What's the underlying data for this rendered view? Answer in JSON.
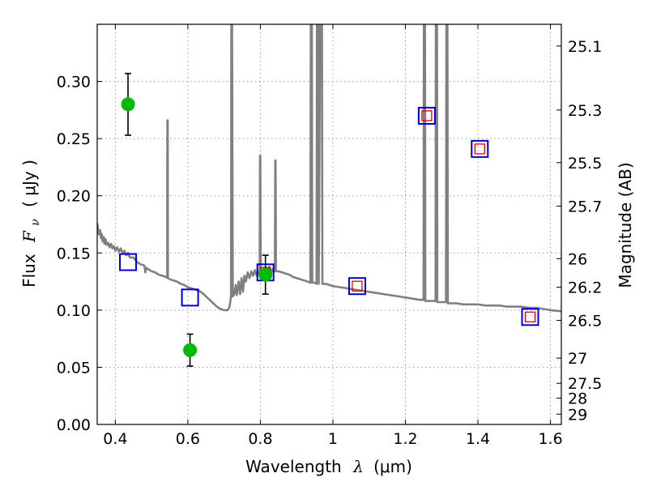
{
  "chart_data": {
    "type": "scatter",
    "xlabel_text": "Wavelength",
    "xlabel_symbol": "λ",
    "xlabel_unit": "(μm)",
    "ylabel_text": "Flux",
    "ylabel_symbol": "F",
    "ylabel_subscript": "ν",
    "ylabel_unit": "( μJy )",
    "y2label": "Magnitude (AB)",
    "xlim": [
      0.35,
      1.63
    ],
    "ylim": [
      0.0,
      0.35
    ],
    "grid": true,
    "xticks": [
      0.4,
      0.6,
      0.8,
      1.0,
      1.2,
      1.4,
      1.6
    ],
    "xtick_labels": [
      "0.4",
      "0.6",
      "0.8",
      "1",
      "1.2",
      "1.4",
      "1.6"
    ],
    "yticks": [
      0.0,
      0.05,
      0.1,
      0.15,
      0.2,
      0.25,
      0.3
    ],
    "ytick_labels": [
      "0.00",
      "0.05",
      "0.10",
      "0.15",
      "0.20",
      "0.25",
      "0.30"
    ],
    "y2ticks": [
      {
        "label": "25.1",
        "flux": 0.331
      },
      {
        "label": "25.3",
        "flux": 0.275
      },
      {
        "label": "25.5",
        "flux": 0.229
      },
      {
        "label": "25.7",
        "flux": 0.191
      },
      {
        "label": "26",
        "flux": 0.145
      },
      {
        "label": "26.2",
        "flux": 0.12
      },
      {
        "label": "26.5",
        "flux": 0.091
      },
      {
        "label": "27",
        "flux": 0.058
      },
      {
        "label": "27.5",
        "flux": 0.036
      },
      {
        "label": "28",
        "flux": 0.023
      },
      {
        "label": "29",
        "flux": 0.009
      }
    ],
    "observed_points": [
      {
        "x": 0.435,
        "y": 0.28,
        "err": 0.027
      },
      {
        "x": 0.606,
        "y": 0.065,
        "err": 0.014
      },
      {
        "x": 0.814,
        "y": 0.131,
        "err": 0.017
      }
    ],
    "model_photometry_blue": [
      {
        "x": 0.435,
        "y": 0.142
      },
      {
        "x": 0.606,
        "y": 0.111
      },
      {
        "x": 0.814,
        "y": 0.133
      },
      {
        "x": 1.067,
        "y": 0.121
      },
      {
        "x": 1.259,
        "y": 0.27
      },
      {
        "x": 1.405,
        "y": 0.241
      },
      {
        "x": 1.544,
        "y": 0.094
      }
    ],
    "model_photometry_red": [
      {
        "x": 0.814,
        "y": 0.133
      },
      {
        "x": 1.067,
        "y": 0.121
      },
      {
        "x": 1.259,
        "y": 0.27
      },
      {
        "x": 1.405,
        "y": 0.241
      },
      {
        "x": 1.544,
        "y": 0.094
      }
    ],
    "sed_model": [
      [
        0.35,
        0.176
      ],
      [
        0.352,
        0.172
      ],
      [
        0.355,
        0.166
      ],
      [
        0.358,
        0.17
      ],
      [
        0.36,
        0.163
      ],
      [
        0.362,
        0.167
      ],
      [
        0.365,
        0.16
      ],
      [
        0.368,
        0.164
      ],
      [
        0.37,
        0.158
      ],
      [
        0.373,
        0.162
      ],
      [
        0.376,
        0.157
      ],
      [
        0.38,
        0.159
      ],
      [
        0.384,
        0.155
      ],
      [
        0.388,
        0.158
      ],
      [
        0.392,
        0.154
      ],
      [
        0.396,
        0.156
      ],
      [
        0.4,
        0.152
      ],
      [
        0.405,
        0.155
      ],
      [
        0.41,
        0.151
      ],
      [
        0.415,
        0.154
      ],
      [
        0.42,
        0.15
      ],
      [
        0.425,
        0.152
      ],
      [
        0.43,
        0.148
      ],
      [
        0.435,
        0.15
      ],
      [
        0.44,
        0.146
      ],
      [
        0.45,
        0.146
      ],
      [
        0.46,
        0.142
      ],
      [
        0.47,
        0.14
      ],
      [
        0.48,
        0.139
      ],
      [
        0.483,
        0.133
      ],
      [
        0.486,
        0.137
      ],
      [
        0.49,
        0.136
      ],
      [
        0.5,
        0.134
      ],
      [
        0.51,
        0.133
      ],
      [
        0.52,
        0.131
      ],
      [
        0.53,
        0.13
      ],
      [
        0.54,
        0.129
      ],
      [
        0.543,
        0.128
      ],
      [
        0.5435,
        0.266
      ],
      [
        0.5445,
        0.266
      ],
      [
        0.545,
        0.128
      ],
      [
        0.55,
        0.127
      ],
      [
        0.56,
        0.126
      ],
      [
        0.57,
        0.125
      ],
      [
        0.58,
        0.123
      ],
      [
        0.59,
        0.122
      ],
      [
        0.6,
        0.12
      ],
      [
        0.61,
        0.119
      ],
      [
        0.62,
        0.118
      ],
      [
        0.63,
        0.117
      ],
      [
        0.64,
        0.115
      ],
      [
        0.65,
        0.112
      ],
      [
        0.66,
        0.109
      ],
      [
        0.67,
        0.106
      ],
      [
        0.68,
        0.103
      ],
      [
        0.69,
        0.101
      ],
      [
        0.7,
        0.1
      ],
      [
        0.71,
        0.1
      ],
      [
        0.715,
        0.103
      ],
      [
        0.719,
        0.112
      ],
      [
        0.72,
        0.35
      ],
      [
        0.722,
        0.35
      ],
      [
        0.724,
        0.112
      ],
      [
        0.728,
        0.114
      ],
      [
        0.732,
        0.122
      ],
      [
        0.735,
        0.113
      ],
      [
        0.74,
        0.125
      ],
      [
        0.744,
        0.114
      ],
      [
        0.748,
        0.128
      ],
      [
        0.752,
        0.116
      ],
      [
        0.756,
        0.13
      ],
      [
        0.76,
        0.125
      ],
      [
        0.765,
        0.133
      ],
      [
        0.77,
        0.128
      ],
      [
        0.775,
        0.134
      ],
      [
        0.78,
        0.13
      ],
      [
        0.785,
        0.135
      ],
      [
        0.79,
        0.13
      ],
      [
        0.795,
        0.134
      ],
      [
        0.798,
        0.131
      ],
      [
        0.799,
        0.235
      ],
      [
        0.8,
        0.235
      ],
      [
        0.801,
        0.131
      ],
      [
        0.805,
        0.135
      ],
      [
        0.81,
        0.131
      ],
      [
        0.815,
        0.136
      ],
      [
        0.82,
        0.133
      ],
      [
        0.825,
        0.138
      ],
      [
        0.83,
        0.133
      ],
      [
        0.835,
        0.136
      ],
      [
        0.84,
        0.134
      ],
      [
        0.841,
        0.231
      ],
      [
        0.842,
        0.231
      ],
      [
        0.843,
        0.134
      ],
      [
        0.85,
        0.134
      ],
      [
        0.86,
        0.133
      ],
      [
        0.87,
        0.132
      ],
      [
        0.88,
        0.131
      ],
      [
        0.89,
        0.129
      ],
      [
        0.9,
        0.128
      ],
      [
        0.91,
        0.127
      ],
      [
        0.92,
        0.126
      ],
      [
        0.93,
        0.125
      ],
      [
        0.938,
        0.124
      ],
      [
        0.939,
        0.35
      ],
      [
        0.942,
        0.35
      ],
      [
        0.943,
        0.124
      ],
      [
        0.95,
        0.124
      ],
      [
        0.955,
        0.123
      ],
      [
        0.956,
        0.35
      ],
      [
        0.96,
        0.35
      ],
      [
        0.961,
        0.123
      ],
      [
        0.965,
        0.35
      ],
      [
        0.97,
        0.35
      ],
      [
        0.971,
        0.123
      ],
      [
        0.98,
        0.123
      ],
      [
        0.99,
        0.122
      ],
      [
        1.0,
        0.121
      ],
      [
        1.02,
        0.12
      ],
      [
        1.04,
        0.119
      ],
      [
        1.06,
        0.118
      ],
      [
        1.08,
        0.117
      ],
      [
        1.1,
        0.116
      ],
      [
        1.12,
        0.115
      ],
      [
        1.14,
        0.114
      ],
      [
        1.16,
        0.113
      ],
      [
        1.18,
        0.112
      ],
      [
        1.2,
        0.111
      ],
      [
        1.22,
        0.11
      ],
      [
        1.24,
        0.109
      ],
      [
        1.25,
        0.109
      ],
      [
        1.251,
        0.35
      ],
      [
        1.254,
        0.35
      ],
      [
        1.255,
        0.108
      ],
      [
        1.27,
        0.108
      ],
      [
        1.283,
        0.108
      ],
      [
        1.284,
        0.35
      ],
      [
        1.287,
        0.35
      ],
      [
        1.288,
        0.107
      ],
      [
        1.3,
        0.107
      ],
      [
        1.312,
        0.107
      ],
      [
        1.313,
        0.35
      ],
      [
        1.316,
        0.35
      ],
      [
        1.317,
        0.106
      ],
      [
        1.34,
        0.106
      ],
      [
        1.36,
        0.105
      ],
      [
        1.38,
        0.105
      ],
      [
        1.4,
        0.105
      ],
      [
        1.42,
        0.104
      ],
      [
        1.44,
        0.104
      ],
      [
        1.46,
        0.104
      ],
      [
        1.48,
        0.103
      ],
      [
        1.5,
        0.103
      ],
      [
        1.52,
        0.103
      ],
      [
        1.54,
        0.102
      ],
      [
        1.56,
        0.102
      ],
      [
        1.58,
        0.101
      ],
      [
        1.6,
        0.1
      ],
      [
        1.63,
        0.099
      ]
    ]
  }
}
